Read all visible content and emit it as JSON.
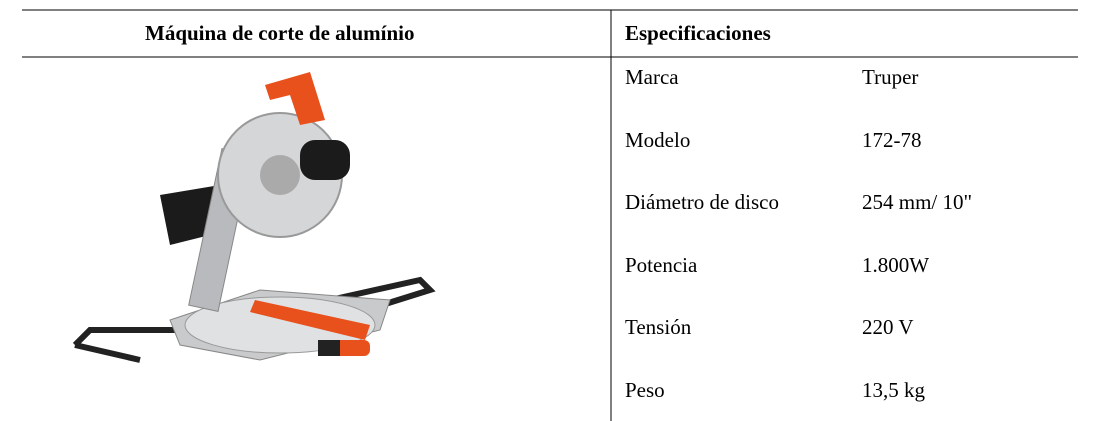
{
  "table": {
    "header": [
      "Máquina de corte de alumínio",
      "Especificaciones"
    ],
    "rows": [
      [
        "Marca",
        "Truper"
      ],
      [
        "Modelo",
        "172-78"
      ],
      [
        "Diámetro de disco",
        "254 mm/ 10\""
      ],
      [
        "Potencia",
        "1.800W"
      ],
      [
        "Tensión",
        "220 V"
      ],
      [
        "Peso",
        "13,5 kg"
      ]
    ]
  }
}
